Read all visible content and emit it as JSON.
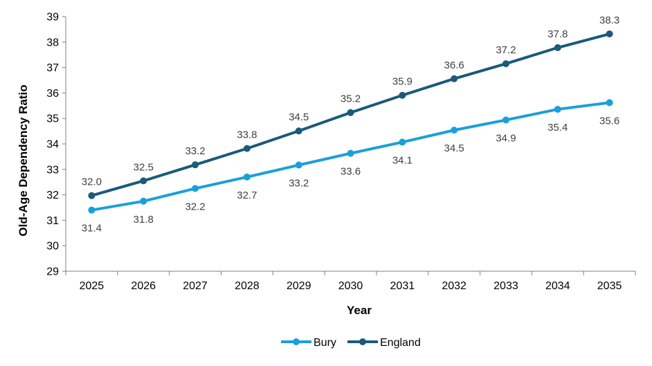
{
  "chart_data": {
    "type": "line",
    "title": "",
    "xlabel": "Year",
    "ylabel": "Old-Age Dependency Ratio",
    "categories": [
      "2025",
      "2026",
      "2027",
      "2028",
      "2029",
      "2030",
      "2031",
      "2032",
      "2033",
      "2034",
      "2035"
    ],
    "ylim": [
      29,
      39
    ],
    "yticks": [
      "29",
      "30",
      "31",
      "32",
      "33",
      "34",
      "35",
      "36",
      "37",
      "38",
      "39"
    ],
    "grid": false,
    "legend_position": "bottom",
    "series": [
      {
        "name": "Bury",
        "color": "#1aa0d8",
        "values": [
          31.4,
          31.75,
          32.25,
          32.7,
          33.17,
          33.63,
          34.07,
          34.54,
          34.94,
          35.36,
          35.62
        ],
        "labels": [
          "31.4",
          "31.8",
          "32.2",
          "32.7",
          "33.2",
          "33.6",
          "34.1",
          "34.5",
          "34.9",
          "35.4",
          "35.6"
        ],
        "label_position": "below"
      },
      {
        "name": "England",
        "color": "#1a5a7a",
        "values": [
          31.97,
          32.55,
          33.18,
          33.82,
          34.51,
          35.23,
          35.91,
          36.56,
          37.15,
          37.78,
          38.32
        ],
        "labels": [
          "32.0",
          "32.5",
          "33.2",
          "33.8",
          "34.5",
          "35.2",
          "35.9",
          "36.6",
          "37.2",
          "37.8",
          "38.3"
        ],
        "label_position": "above"
      }
    ]
  }
}
